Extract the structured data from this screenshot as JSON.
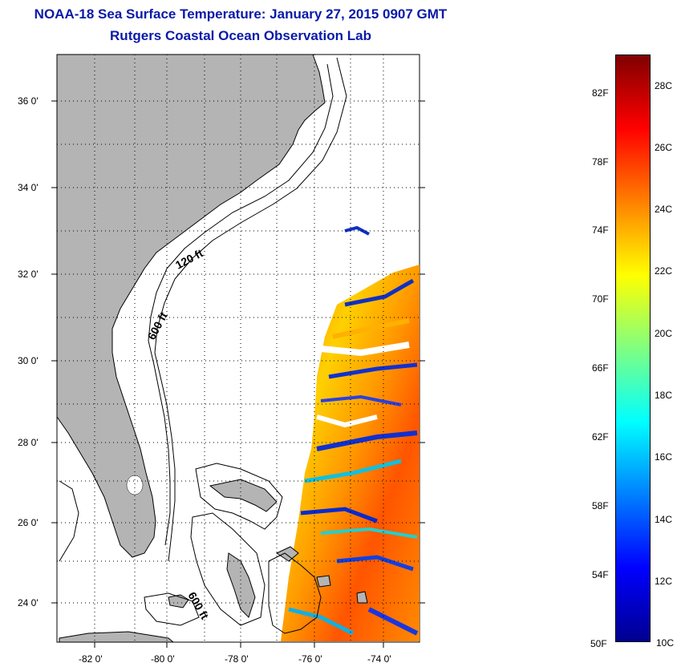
{
  "header": {
    "title": "NOAA-18 Sea Surface Temperature:  January 27, 2015 0907 GMT",
    "subtitle": "Rutgers Coastal Ocean Observation Lab"
  },
  "map": {
    "lon_ticks": [
      "-82 0'",
      "-80 0'",
      "-78 0'",
      "-76 0'",
      "-74 0'"
    ],
    "lat_ticks": [
      "36 0'",
      "34 0'",
      "32 0'",
      "30 0'",
      "28 0'",
      "26 0'",
      "24 0'"
    ],
    "isobath_labels": [
      "120 ft",
      "600 ft",
      "600 ft"
    ],
    "land_color": "#b4b4b4",
    "grid": "dotted"
  },
  "colorbar": {
    "fahrenheit": [
      "82F",
      "78F",
      "74F",
      "70F",
      "66F",
      "62F",
      "58F",
      "54F",
      "50F"
    ],
    "celsius": [
      "28C",
      "26C",
      "24C",
      "22C",
      "20C",
      "18C",
      "16C",
      "14C",
      "12C",
      "10C"
    ],
    "min_c": 10,
    "max_c": 29,
    "colors": [
      "#00008f",
      "#0000ff",
      "#0080ff",
      "#00ffff",
      "#80ff80",
      "#ffff00",
      "#ff8000",
      "#ff0000",
      "#800000"
    ]
  }
}
